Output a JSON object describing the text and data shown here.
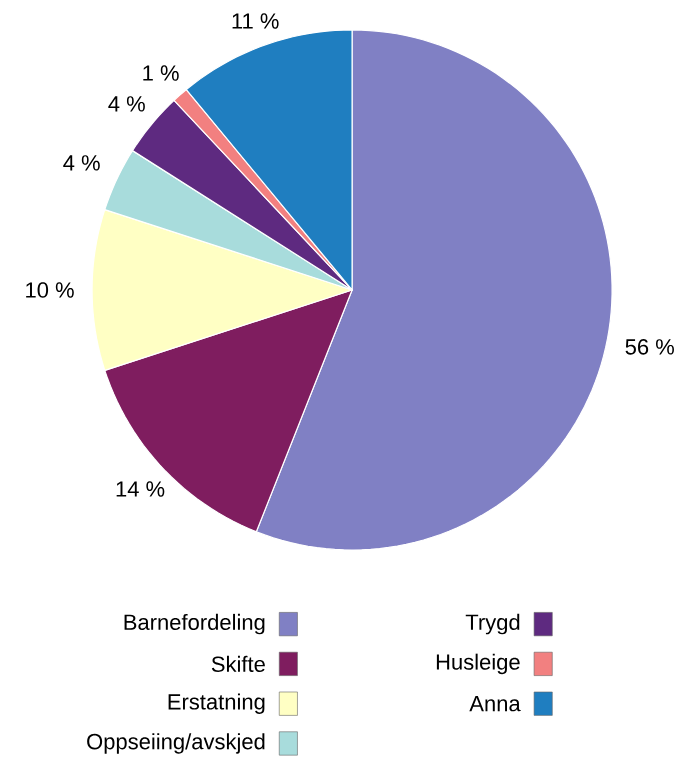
{
  "chart_data": {
    "type": "pie",
    "categories": [
      "Barnefordeling",
      "Skifte",
      "Erstatning",
      "Oppseiing/avskjed",
      "Trygd",
      "Husleige",
      "Anna"
    ],
    "values": [
      56,
      14,
      10,
      4,
      4,
      1,
      11
    ],
    "colors": [
      "#8080c4",
      "#7f1d5f",
      "#ffffc4",
      "#a8dcdc",
      "#5e2a80",
      "#f28080",
      "#1f7ec0"
    ],
    "value_labels": [
      "56 %",
      "14 %",
      "10 %",
      "4 %",
      "4 %",
      "1 %",
      "11 %"
    ],
    "legend": "bottom"
  }
}
